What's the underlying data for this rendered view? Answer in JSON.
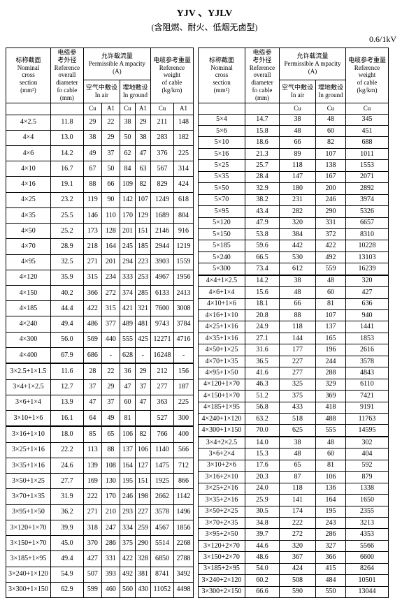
{
  "title": "YJV 、YJLV",
  "subtitle": "(含阻燃、耐火、低烟无卤型)",
  "voltage": "0.6/1kV",
  "headers": {
    "nominal": "标称截面\nNominal\ncross\nsection",
    "nominal_unit": "(mm²)",
    "reference_od": "电缆参\n考外径\nReference\noverall\ndiameter\nfo cable",
    "reference_od_unit": "(mm)",
    "ampacity": "允许载流量\nPermissible A mpacity\n(A)",
    "in_air": "空气中敷设\nIn air",
    "in_ground": "埋地敷设\nIn ground",
    "weight": "电缆参考重量\nReference\nweight\nof cable",
    "weight_unit": "(kg/km)",
    "cu": "Cu",
    "al": "A1"
  },
  "left_rows": [
    [
      "4×2.5",
      "11.8",
      "29",
      "22",
      "38",
      "29",
      "211",
      "148"
    ],
    [
      "4×4",
      "13.0",
      "38",
      "29",
      "50",
      "38",
      "283",
      "182"
    ],
    [
      "4×6",
      "14.2",
      "49",
      "37",
      "62",
      "47",
      "376",
      "225"
    ],
    [
      "4×10",
      "16.7",
      "67",
      "50",
      "84",
      "63",
      "567",
      "314"
    ],
    [
      "4×16",
      "19.1",
      "88",
      "66",
      "109",
      "82",
      "829",
      "424"
    ],
    [
      "4×25",
      "23.2",
      "119",
      "90",
      "142",
      "107",
      "1249",
      "618"
    ],
    [
      "4×35",
      "25.5",
      "146",
      "110",
      "170",
      "129",
      "1689",
      "804"
    ],
    [
      "4×50",
      "25.2",
      "173",
      "128",
      "201",
      "151",
      "2146",
      "916"
    ],
    [
      "4×70",
      "28.9",
      "218",
      "164",
      "245",
      "185",
      "2944",
      "1219"
    ],
    [
      "4×95",
      "32.5",
      "271",
      "201",
      "294",
      "223",
      "3903",
      "1559"
    ],
    [
      "4×120",
      "35.9",
      "315",
      "234",
      "333",
      "253",
      "4967",
      "1956"
    ],
    [
      "4×150",
      "40.2",
      "366",
      "272",
      "374",
      "285",
      "6133",
      "2413"
    ],
    [
      "4×185",
      "44.4",
      "422",
      "315",
      "421",
      "321",
      "7600",
      "3008"
    ],
    [
      "4×240",
      "49.4",
      "486",
      "377",
      "489",
      "481",
      "9743",
      "3784"
    ],
    [
      "4×300",
      "56.0",
      "569",
      "440",
      "555",
      "425",
      "12271",
      "4716"
    ],
    [
      "4×400",
      "67.9",
      "686",
      "-",
      "628",
      "-",
      "16248",
      "-"
    ],
    [
      "3×2.5+1×1.5",
      "11.6",
      "28",
      "22",
      "36",
      "29",
      "212",
      "156"
    ],
    [
      "3×4+1×2.5",
      "12.7",
      "37",
      "29",
      "47",
      "37",
      "277",
      "187"
    ],
    [
      "3×6+1×4",
      "13.9",
      "47",
      "37",
      "60",
      "47",
      "363",
      "225"
    ],
    [
      "3×10+1×6",
      "16.1",
      "64",
      "49",
      "81",
      "",
      "527",
      "300"
    ],
    [
      "3×16+1×10",
      "18.0",
      "85",
      "65",
      "106",
      "82",
      "766",
      "400"
    ],
    [
      "3×25+1×16",
      "22.2",
      "113",
      "88",
      "137",
      "106",
      "1140",
      "566"
    ],
    [
      "3×35+1×16",
      "24.6",
      "139",
      "108",
      "164",
      "127",
      "1475",
      "712"
    ],
    [
      "3×50+1×25",
      "27.7",
      "169",
      "130",
      "195",
      "151",
      "1925",
      "866"
    ],
    [
      "3×70+1×35",
      "31.9",
      "222",
      "170",
      "246",
      "198",
      "2662",
      "1142"
    ],
    [
      "3×95+1×50",
      "36.2",
      "271",
      "210",
      "293",
      "227",
      "3578",
      "1496"
    ],
    [
      "3×120+1×70",
      "39.9",
      "318",
      "247",
      "334",
      "259",
      "4567",
      "1856"
    ],
    [
      "3×150+1×70",
      "45.0",
      "370",
      "286",
      "375",
      "290",
      "5514",
      "2268"
    ],
    [
      "3×185+1×95",
      "49.4",
      "427",
      "331",
      "422",
      "328",
      "6850",
      "2788"
    ],
    [
      "3×240+1×120",
      "54.9",
      "507",
      "393",
      "492",
      "381",
      "8741",
      "3492"
    ],
    [
      "3×300+1×150",
      "62.9",
      "599",
      "460",
      "560",
      "430",
      "11052",
      "4498"
    ]
  ],
  "left_section_breaks": [
    16,
    20
  ],
  "right_rows": [
    [
      "5×4",
      "14.7",
      "38",
      "48",
      "345"
    ],
    [
      "5×6",
      "15.8",
      "48",
      "60",
      "451"
    ],
    [
      "5×10",
      "18.6",
      "66",
      "82",
      "688"
    ],
    [
      "5×16",
      "21.3",
      "89",
      "107",
      "1011"
    ],
    [
      "5×25",
      "25.7",
      "118",
      "138",
      "1553"
    ],
    [
      "5×35",
      "28.4",
      "147",
      "167",
      "2071"
    ],
    [
      "5×50",
      "32.9",
      "180",
      "200",
      "2892"
    ],
    [
      "5×70",
      "38.2",
      "231",
      "246",
      "3974"
    ],
    [
      "5×95",
      "43.4",
      "282",
      "290",
      "5326"
    ],
    [
      "5×120",
      "47.9",
      "320",
      "331",
      "6657"
    ],
    [
      "5×150",
      "53.8",
      "384",
      "372",
      "8310"
    ],
    [
      "5×185",
      "59.6",
      "442",
      "422",
      "10228"
    ],
    [
      "5×240",
      "66.5",
      "530",
      "492",
      "13103"
    ],
    [
      "5×300",
      "73.4",
      "612",
      "559",
      "16239"
    ],
    [
      "4×4+1×2.5",
      "14.2",
      "38",
      "48",
      "320"
    ],
    [
      "4×6+1×4",
      "15.6",
      "48",
      "60",
      "427"
    ],
    [
      "4×10+1×6",
      "18.1",
      "66",
      "81",
      "636"
    ],
    [
      "4×16+1×10",
      "20.8",
      "88",
      "107",
      "940"
    ],
    [
      "4×25+1×16",
      "24.9",
      "118",
      "137",
      "1441"
    ],
    [
      "4×35+1×16",
      "27.1",
      "144",
      "165",
      "1853"
    ],
    [
      "4×50+1×25",
      "31.6",
      "177",
      "196",
      "2616"
    ],
    [
      "4×70+1×35",
      "36.5",
      "227",
      "244",
      "3578"
    ],
    [
      "4×95+1×50",
      "41.6",
      "277",
      "288",
      "4843"
    ],
    [
      "4×120+1×70",
      "46.3",
      "325",
      "329",
      "6110"
    ],
    [
      "4×150+1×70",
      "51.2",
      "375",
      "369",
      "7421"
    ],
    [
      "4×185+1×95",
      "56.8",
      "433",
      "418",
      "9191"
    ],
    [
      "4×240+1×120",
      "63.2",
      "518",
      "488",
      "11763"
    ],
    [
      "4×300+1×150",
      "70.0",
      "625",
      "555",
      "14595"
    ],
    [
      "3×4+2×2.5",
      "14.0",
      "38",
      "48",
      "302"
    ],
    [
      "3×6+2×4",
      "15.3",
      "48",
      "60",
      "404"
    ],
    [
      "3×10+2×6",
      "17.6",
      "65",
      "81",
      "592"
    ],
    [
      "3×16+2×10",
      "20.3",
      "87",
      "106",
      "879"
    ],
    [
      "3×25+2×16",
      "24.0",
      "118",
      "136",
      "1338"
    ],
    [
      "3×35+2×16",
      "25.9",
      "141",
      "164",
      "1650"
    ],
    [
      "3×50+2×25",
      "30.5",
      "174",
      "195",
      "2355"
    ],
    [
      "3×70+2×35",
      "34.8",
      "222",
      "243",
      "3213"
    ],
    [
      "3×95+2×50",
      "39.7",
      "272",
      "286",
      "4353"
    ],
    [
      "3×120+2×70",
      "44.6",
      "320",
      "327",
      "5566"
    ],
    [
      "3×150+2×70",
      "48.6",
      "367",
      "366",
      "6600"
    ],
    [
      "3×185+2×95",
      "54.0",
      "424",
      "415",
      "8264"
    ],
    [
      "3×240+2×120",
      "60.2",
      "508",
      "484",
      "10501"
    ],
    [
      "3×300+2×150",
      "66.6",
      "590",
      "550",
      "13044"
    ]
  ],
  "right_section_breaks": [
    14,
    28
  ]
}
